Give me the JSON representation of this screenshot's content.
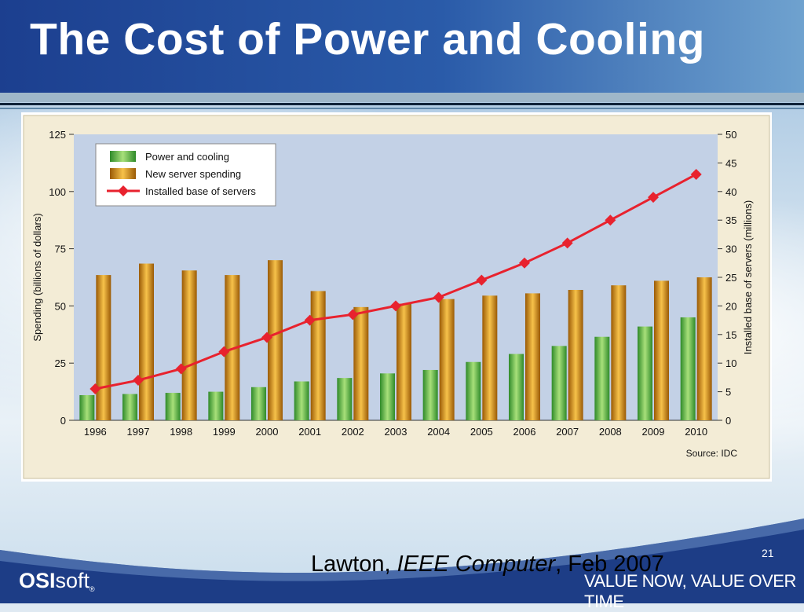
{
  "slide": {
    "title": "The Cost of Power and Cooling",
    "slide_number": "21",
    "citation": {
      "author": "Lawton, ",
      "journal": "IEEE Computer",
      "date": ", Feb 2007"
    },
    "logo": {
      "bold": "OSI",
      "rest": "soft",
      "mark": "®"
    },
    "tagline": "VALUE NOW, VALUE OVER TIME"
  },
  "colors": {
    "header_blue": "#1c3f8f",
    "green_bar": "#5fb84a",
    "orange_bar": "#e09a17",
    "red_line": "#e8222e",
    "plot_bg": "#c3d1e6",
    "chart_bg": "#f3ecd6"
  },
  "chart_data": {
    "type": "bar",
    "categories": [
      "1996",
      "1997",
      "1998",
      "1999",
      "2000",
      "2001",
      "2002",
      "2003",
      "2004",
      "2005",
      "2006",
      "2007",
      "2008",
      "2009",
      "2010"
    ],
    "series": [
      {
        "name": "Power and cooling",
        "axis": "left",
        "type": "bar",
        "values": [
          11,
          11.5,
          12,
          12.5,
          14.5,
          17,
          18.5,
          20.5,
          22,
          25.5,
          29,
          32.5,
          36.5,
          41,
          45
        ]
      },
      {
        "name": "New server spending",
        "axis": "left",
        "type": "bar",
        "values": [
          63.5,
          68.5,
          65.5,
          63.5,
          70,
          56.5,
          49.5,
          51,
          53,
          54.5,
          55.5,
          57,
          59,
          61,
          62.5
        ]
      },
      {
        "name": "Installed base of servers",
        "axis": "right",
        "type": "line",
        "values": [
          5.5,
          7,
          9,
          12,
          14.5,
          17.5,
          18.5,
          20,
          21.5,
          24.5,
          27.5,
          31,
          35,
          39,
          43
        ]
      }
    ],
    "ylabel": "Spending (billions of dollars)",
    "y2label": "Installed base of servers  (millions)",
    "ylim": [
      0,
      125
    ],
    "y2lim": [
      0,
      50
    ],
    "yticks": [
      "0",
      "25",
      "50",
      "75",
      "100",
      "125"
    ],
    "y2ticks": [
      "0",
      "5",
      "10",
      "15",
      "20",
      "25",
      "30",
      "35",
      "40",
      "45",
      "50"
    ],
    "source": "Source: IDC",
    "legend_position": "top-left",
    "grid": false
  }
}
